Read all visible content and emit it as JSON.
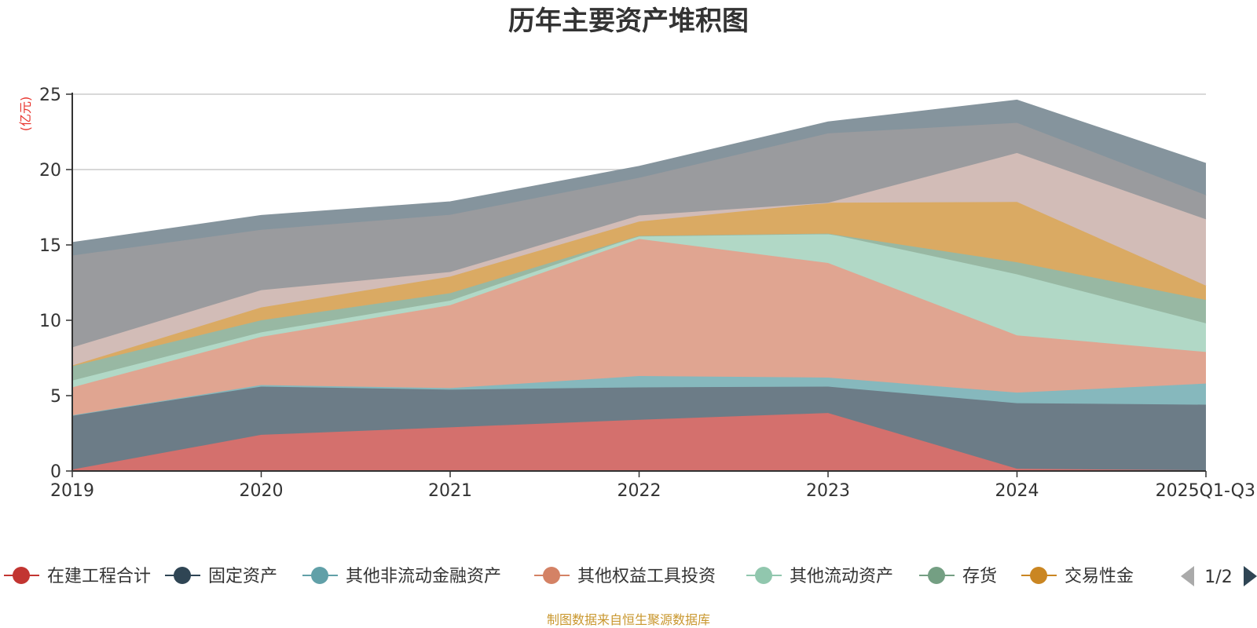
{
  "chart_data": {
    "type": "area",
    "stacked": true,
    "title": "历年主要资产堆积图",
    "unit_label": "(亿元)",
    "ylim": [
      0,
      25
    ],
    "y_ticks": [
      0,
      5,
      10,
      15,
      20,
      25
    ],
    "categories": [
      "2019",
      "2020",
      "2021",
      "2022",
      "2023",
      "2024",
      "2025Q1-Q3"
    ],
    "series": [
      {
        "name": "在建工程合计",
        "legend_color": "#c23531",
        "fill": "#d4706d",
        "visible_in_legend": true,
        "values": [
          0.1,
          2.4,
          2.9,
          3.4,
          3.85,
          0.15,
          0.05
        ]
      },
      {
        "name": "固定资产",
        "legend_color": "#2f4554",
        "fill": "#6c7c87",
        "visible_in_legend": true,
        "values": [
          3.6,
          3.2,
          2.5,
          2.15,
          1.75,
          4.35,
          4.35
        ]
      },
      {
        "name": "其他非流动金融资产",
        "legend_color": "#61a0a8",
        "fill": "#86b8bd",
        "visible_in_legend": true,
        "values": [
          0.0,
          0.1,
          0.1,
          0.75,
          0.6,
          0.7,
          1.4
        ]
      },
      {
        "name": "其他权益工具投资",
        "legend_color": "#d48265",
        "fill": "#e0a591",
        "visible_in_legend": true,
        "values": [
          1.85,
          3.2,
          5.5,
          9.1,
          7.6,
          3.8,
          2.1
        ]
      },
      {
        "name": "其他流动资产",
        "legend_color": "#91c7ae",
        "fill": "#b1d8c6",
        "visible_in_legend": true,
        "values": [
          0.45,
          0.3,
          0.3,
          0.2,
          1.95,
          4.05,
          1.9
        ]
      },
      {
        "name": "存货",
        "legend_color": "#749f83",
        "fill": "#98b8a3",
        "visible_in_legend": true,
        "values": [
          0.95,
          0.8,
          0.5,
          0.0,
          0.0,
          0.8,
          1.55
        ]
      },
      {
        "name": "交易性金",
        "legend_color": "#ca8622",
        "fill": "#daaa63",
        "visible_in_legend": true,
        "values": [
          0.05,
          0.85,
          1.1,
          0.95,
          2.05,
          4.0,
          0.95
        ]
      },
      {
        "name": "series-8",
        "legend_color": "#bda29a",
        "fill": "#d2bcb7",
        "visible_in_legend": false,
        "values": [
          1.2,
          1.15,
          0.3,
          0.4,
          0.0,
          3.25,
          4.4
        ]
      },
      {
        "name": "series-9",
        "legend_color": "#6e7074",
        "fill": "#9a9b9e",
        "visible_in_legend": false,
        "values": [
          6.1,
          4.0,
          3.8,
          2.5,
          4.6,
          2.0,
          1.6
        ]
      },
      {
        "name": "series-10",
        "legend_color": "#546570",
        "fill": "#85949d",
        "visible_in_legend": false,
        "values": [
          0.85,
          0.95,
          0.85,
          0.75,
          0.75,
          1.5,
          2.1
        ]
      }
    ],
    "legend": {
      "placement": "bottom",
      "page": "1/2",
      "items": [
        "在建工程合计",
        "固定资产",
        "其他非流动金融资产",
        "其他权益工具投资",
        "其他流动资产",
        "存货",
        "交易性金"
      ]
    },
    "source_note": "制图数据来自恒生聚源数据库"
  }
}
